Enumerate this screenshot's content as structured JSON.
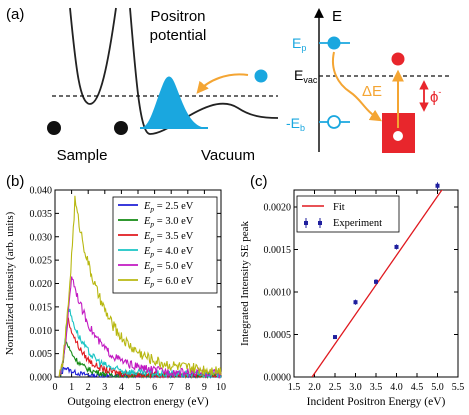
{
  "panel_a": {
    "label": "(a)",
    "potential_title_line1": "Positron",
    "potential_title_line2": "potential",
    "sample_label": "Sample",
    "vacuum_label": "Vacuum",
    "energy_axis": "E",
    "ep_main": "E",
    "ep_sub": "p",
    "evac_main": "E",
    "evac_sub": "vac",
    "eb_main": "-E",
    "eb_sub": "b",
    "delta_e": "ΔE",
    "phi_main": "ϕ",
    "phi_sup": "-",
    "colors": {
      "positron": "#1aa7df",
      "electron": "#e8262c",
      "arrow": "#f4a533"
    }
  },
  "chart_data": [
    {
      "type": "line",
      "panel_label": "(b)",
      "xlabel": "Outgoing electron energy (eV)",
      "ylabel": "Normalized intensity (arb. units)",
      "xlim": [
        0,
        10
      ],
      "ylim": [
        0,
        0.04
      ],
      "xticks": [
        "0",
        "1",
        "2",
        "3",
        "4",
        "5",
        "6",
        "7",
        "8",
        "9",
        "10"
      ],
      "yticks": [
        "0.000",
        "0.005",
        "0.010",
        "0.015",
        "0.020",
        "0.025",
        "0.030",
        "0.035",
        "0.040"
      ],
      "legend_position": "top-right",
      "series": [
        {
          "name_main": "E",
          "name_sub": "p",
          "name_rest": " = 2.5 eV",
          "color": "#1f1fd6",
          "peak_x": 0.55,
          "peak_y": 0.0022,
          "decay": 0.7,
          "tail": 0.0002
        },
        {
          "name_main": "E",
          "name_sub": "p",
          "name_rest": " = 3.0 eV",
          "color": "#138a13",
          "peak_x": 0.65,
          "peak_y": 0.0078,
          "decay": 0.8,
          "tail": 0.0003
        },
        {
          "name_main": "E",
          "name_sub": "p",
          "name_rest": " = 3.5 eV",
          "color": "#e0191f",
          "peak_x": 0.75,
          "peak_y": 0.0128,
          "decay": 0.95,
          "tail": 0.0004
        },
        {
          "name_main": "E",
          "name_sub": "p",
          "name_rest": " = 4.0 eV",
          "color": "#19c4c4",
          "peak_x": 0.8,
          "peak_y": 0.0152,
          "decay": 1.1,
          "tail": 0.0006
        },
        {
          "name_main": "E",
          "name_sub": "p",
          "name_rest": " = 5.0 eV",
          "color": "#c21ac2",
          "peak_x": 1.0,
          "peak_y": 0.022,
          "decay": 1.45,
          "tail": 0.0008
        },
        {
          "name_main": "E",
          "name_sub": "p",
          "name_rest": " = 6.0 eV",
          "color": "#b8b812",
          "peak_x": 1.2,
          "peak_y": 0.0378,
          "decay": 1.75,
          "tail": 0.0012
        }
      ]
    },
    {
      "type": "scatter",
      "panel_label": "(c)",
      "xlabel": "Incident Positron Energy (eV)",
      "ylabel": "Integrated Intensity SE peak",
      "xlim": [
        1.5,
        5.5
      ],
      "ylim": [
        0,
        0.0022
      ],
      "xticks": [
        "1.5",
        "2.0",
        "2.5",
        "3.0",
        "3.5",
        "4.0",
        "4.5",
        "5.0",
        "5.5"
      ],
      "yticks": [
        "0.0000",
        "0.0005",
        "0.0010",
        "0.0015",
        "0.0020"
      ],
      "legend_position": "top-left",
      "fit": {
        "name": "Fit",
        "color": "#e0191f",
        "x": [
          1.94,
          5.25
        ],
        "y": [
          0.0,
          0.0023
        ]
      },
      "experiment": {
        "name": "Experiment",
        "color": "#1f1f9e",
        "x": [
          2.5,
          3.0,
          3.5,
          4.0,
          5.0
        ],
        "y": [
          0.00047,
          0.00088,
          0.00112,
          0.00153,
          0.00225
        ],
        "err": [
          2e-05,
          3e-05,
          3e-05,
          3e-05,
          4e-05
        ]
      }
    }
  ]
}
